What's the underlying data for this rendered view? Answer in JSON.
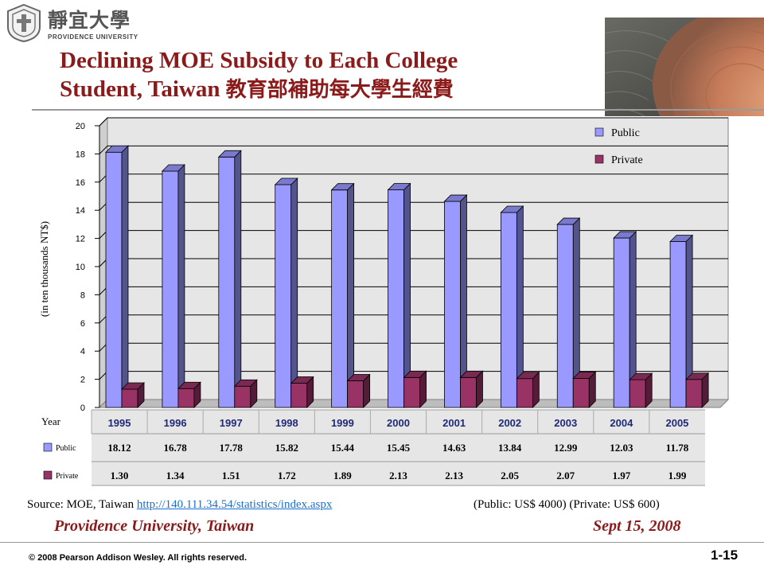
{
  "header": {
    "logo_chinese": "靜宜大學",
    "logo_english": "PROVIDENCE UNIVERSITY",
    "title_line1": "Declining MOE Subsidy to Each College",
    "title_line2_en": "Student, Taiwan ",
    "title_line2_ch": "教育部補助每大學生經費"
  },
  "chart_data": {
    "type": "bar",
    "ylabel": "(in ten thousands NT$)",
    "ylim": [
      0,
      20
    ],
    "yticks": [
      "0",
      "2",
      "4",
      "6",
      "8",
      "10",
      "12",
      "14",
      "16",
      "18",
      "20"
    ],
    "categories": [
      "1995",
      "1996",
      "1997",
      "1998",
      "1999",
      "2000",
      "2001",
      "2002",
      "2003",
      "2004",
      "2005"
    ],
    "series": [
      {
        "name": "Public",
        "color": "#9999ff",
        "values": [
          18.12,
          16.78,
          17.78,
          15.82,
          15.44,
          15.45,
          14.63,
          13.84,
          12.99,
          12.03,
          11.78
        ],
        "labels": [
          "18.12",
          "16.78",
          "17.78",
          "15.82",
          "15.44",
          "15.45",
          "14.63",
          "13.84",
          "12.99",
          "12.03",
          "11.78"
        ]
      },
      {
        "name": "Private",
        "color": "#993366",
        "values": [
          1.3,
          1.34,
          1.51,
          1.72,
          1.89,
          2.13,
          2.13,
          2.05,
          2.07,
          1.97,
          1.99
        ],
        "labels": [
          "1.30",
          "1.34",
          "1.51",
          "1.72",
          "1.89",
          "2.13",
          "2.13",
          "2.05",
          "2.07",
          "1.97",
          "1.99"
        ]
      }
    ],
    "table_header": "Year",
    "legend_position": "top-right",
    "grid": true
  },
  "footer": {
    "source_label": "Source: MOE, Taiwan ",
    "source_url": "http://140.111.34.54/statistics/index.aspx",
    "conversion_note": "(Public: US$ 4000) (Private: US$ 600)",
    "institution": "Providence University, Taiwan",
    "date": "Sept 15, 2008",
    "copyright": "© 2008 Pearson Addison Wesley. All rights reserved.",
    "page_number": "1-15"
  }
}
